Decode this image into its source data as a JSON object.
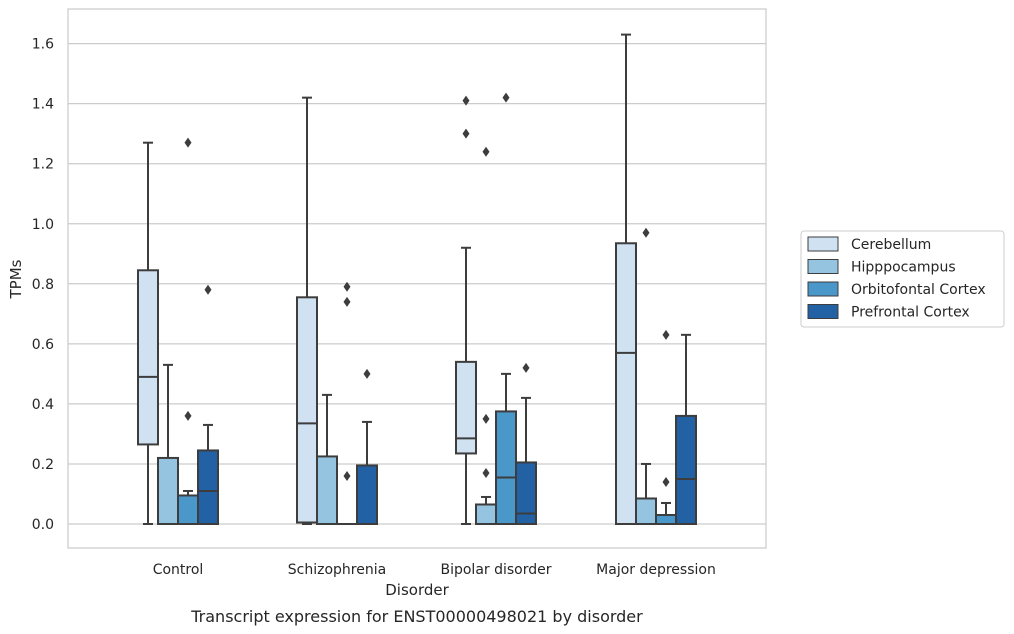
{
  "caption": "Transcript expression for ENST00000498021 by disorder",
  "chart_data": {
    "type": "box",
    "categories": [
      "Control",
      "Schizophrenia",
      "Bipolar disorder",
      "Major depression"
    ],
    "xlabel": "Disorder",
    "ylabel": "TPMs",
    "ylim": [
      -0.08,
      1.72
    ],
    "yticks": [
      0.0,
      0.2,
      0.4,
      0.6,
      0.8,
      1.0,
      1.2,
      1.4,
      1.6
    ],
    "ytick_labels": [
      "0.0",
      "0.2",
      "0.4",
      "0.6",
      "0.8",
      "1.0",
      "1.2",
      "1.4",
      "1.6"
    ],
    "grid": true,
    "legend_position": "right",
    "series": [
      {
        "name": "Cerebellum",
        "color": "#d0e1f2",
        "boxes": [
          {
            "whisker_low": 0.0,
            "q1": 0.265,
            "median": 0.49,
            "q3": 0.845,
            "whisker_high": 1.27,
            "outliers": []
          },
          {
            "whisker_low": 0.0,
            "q1": 0.005,
            "median": 0.335,
            "q3": 0.755,
            "whisker_high": 1.42,
            "outliers": []
          },
          {
            "whisker_low": 0.0,
            "q1": 0.235,
            "median": 0.285,
            "q3": 0.54,
            "whisker_high": 0.92,
            "outliers": [
              1.41,
              1.3
            ]
          },
          {
            "whisker_low": 0.0,
            "q1": 0.0,
            "median": 0.57,
            "q3": 0.935,
            "whisker_high": 1.63,
            "outliers": []
          }
        ]
      },
      {
        "name": "Hipppocampus",
        "color": "#94c4df",
        "boxes": [
          {
            "whisker_low": 0.0,
            "q1": 0.0,
            "median": 0.0,
            "q3": 0.22,
            "whisker_high": 0.53,
            "outliers": []
          },
          {
            "whisker_low": 0.0,
            "q1": 0.0,
            "median": 0.0,
            "q3": 0.225,
            "whisker_high": 0.43,
            "outliers": []
          },
          {
            "whisker_low": 0.0,
            "q1": 0.0,
            "median": 0.0,
            "q3": 0.065,
            "whisker_high": 0.09,
            "outliers": [
              1.24,
              0.35,
              0.17
            ]
          },
          {
            "whisker_low": 0.0,
            "q1": 0.0,
            "median": 0.0,
            "q3": 0.085,
            "whisker_high": 0.2,
            "outliers": [
              0.97
            ]
          }
        ]
      },
      {
        "name": "Orbitofontal Cortex",
        "color": "#4a98c9",
        "boxes": [
          {
            "whisker_low": 0.0,
            "q1": 0.0,
            "median": 0.0,
            "q3": 0.095,
            "whisker_high": 0.11,
            "outliers": [
              1.27,
              0.36
            ]
          },
          {
            "whisker_low": 0.0,
            "q1": 0.0,
            "median": 0.0,
            "q3": 0.0,
            "whisker_high": 0.0,
            "outliers": [
              0.79,
              0.74,
              0.16
            ]
          },
          {
            "whisker_low": 0.0,
            "q1": 0.0,
            "median": 0.155,
            "q3": 0.375,
            "whisker_high": 0.5,
            "outliers": [
              1.42
            ]
          },
          {
            "whisker_low": 0.0,
            "q1": 0.0,
            "median": 0.0,
            "q3": 0.03,
            "whisker_high": 0.07,
            "outliers": [
              0.63,
              0.14
            ]
          }
        ]
      },
      {
        "name": "Prefrontal Cortex",
        "color": "#2161a4",
        "boxes": [
          {
            "whisker_low": 0.0,
            "q1": 0.0,
            "median": 0.11,
            "q3": 0.245,
            "whisker_high": 0.33,
            "outliers": [
              0.78
            ]
          },
          {
            "whisker_low": 0.0,
            "q1": 0.0,
            "median": 0.0,
            "q3": 0.195,
            "whisker_high": 0.34,
            "outliers": [
              0.5
            ]
          },
          {
            "whisker_low": 0.0,
            "q1": 0.0,
            "median": 0.035,
            "q3": 0.205,
            "whisker_high": 0.42,
            "outliers": [
              0.52
            ]
          },
          {
            "whisker_low": 0.0,
            "q1": 0.0,
            "median": 0.15,
            "q3": 0.36,
            "whisker_high": 0.63,
            "outliers": []
          }
        ]
      }
    ]
  }
}
